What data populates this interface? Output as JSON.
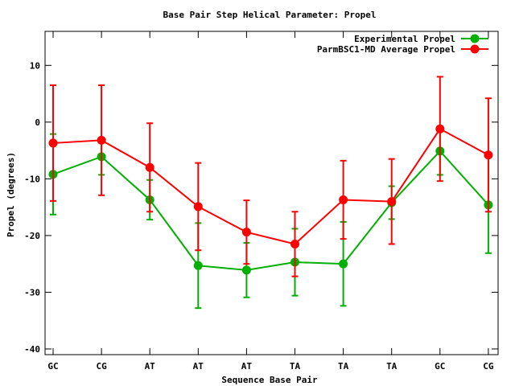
{
  "chart_data": {
    "type": "line",
    "title": "Base Pair Step Helical Parameter: Propel",
    "xlabel": "Sequence Base Pair",
    "ylabel": "Propel (degrees)",
    "categories": [
      "GC",
      "CG",
      "AT",
      "AT",
      "AT",
      "TA",
      "TA",
      "TA",
      "GC",
      "CG"
    ],
    "ylim": [
      -41,
      16
    ],
    "yticks": [
      -40,
      -30,
      -20,
      -10,
      0,
      10
    ],
    "grid": false,
    "legend_position": "top-right",
    "series": [
      {
        "name": "Experimental Propel",
        "color": "#00b000",
        "values": [
          -9.2,
          -6.1,
          -13.7,
          -25.3,
          -26.1,
          -24.7,
          -25.0,
          -14.2,
          -5.1,
          -14.6
        ],
        "errors": [
          7.1,
          3.2,
          3.5,
          7.5,
          4.8,
          5.9,
          7.4,
          2.9,
          4.2,
          8.5
        ]
      },
      {
        "name": "ParmBSC1-MD Average Propel",
        "color": "#ff0000",
        "values": [
          -3.7,
          -3.2,
          -8.0,
          -14.9,
          -19.4,
          -21.5,
          -13.7,
          -14.0,
          -1.2,
          -5.8
        ],
        "errors": [
          10.2,
          9.7,
          7.8,
          7.7,
          5.6,
          5.7,
          6.9,
          7.5,
          9.2,
          10.0
        ]
      }
    ]
  }
}
